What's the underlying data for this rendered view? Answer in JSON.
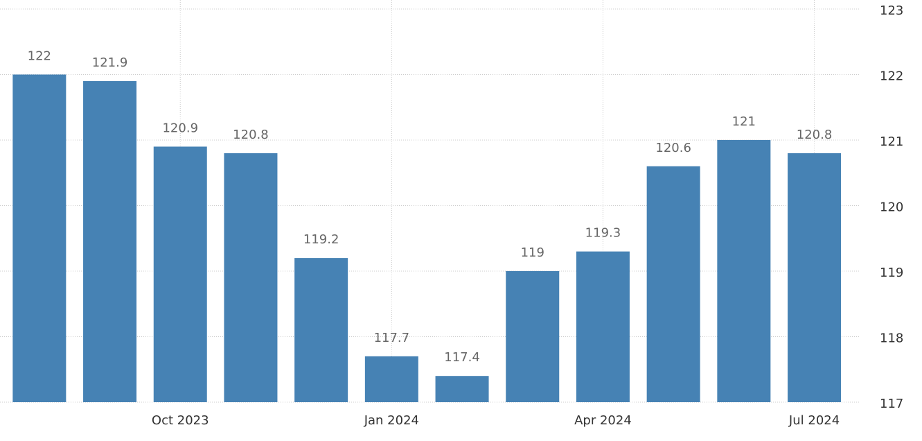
{
  "chart_data": {
    "type": "bar",
    "categories": [
      null,
      null,
      "Oct 2023",
      null,
      null,
      "Jan 2024",
      null,
      null,
      "Apr 2024",
      null,
      null,
      "Jul 2024"
    ],
    "values": [
      122,
      121.9,
      120.9,
      120.8,
      119.2,
      117.7,
      117.4,
      119,
      119.3,
      120.6,
      121,
      120.8
    ],
    "color": "#4682b4",
    "ylim": [
      117,
      123
    ],
    "yticks": [
      117,
      118,
      119,
      120,
      121,
      122,
      123
    ],
    "grid": true
  }
}
